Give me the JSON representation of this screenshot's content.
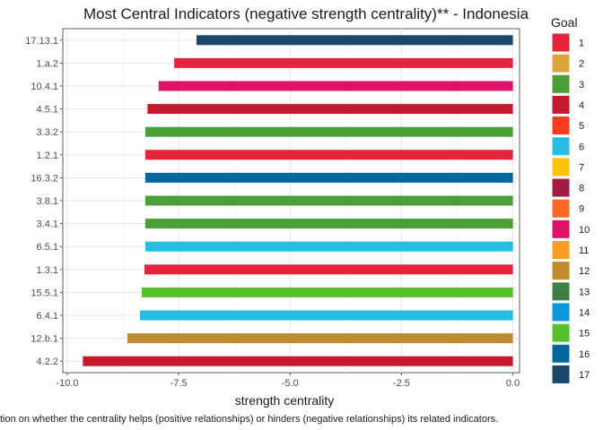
{
  "chart_data": {
    "type": "bar",
    "orientation": "horizontal",
    "title": "Most Central Indicators (negative strength centrality)** - Indonesia",
    "xlabel": "strength centrality",
    "ylabel": "",
    "xlim": [
      -10.1,
      0.15
    ],
    "xticks": [
      -10.0,
      -7.5,
      -5.0,
      -2.5,
      0.0
    ],
    "xtick_labels": [
      "-10.0",
      "-7.5",
      "-5.0",
      "-2.5",
      "0.0"
    ],
    "grid": true,
    "legend_position": "right",
    "categories": [
      "17.13.1",
      "1.a.2",
      "10.4.1",
      "4.5.1",
      "3.3.2",
      "1.2.1",
      "16.3.2",
      "3.8.1",
      "3.4.1",
      "6.5.1",
      "1.3.1",
      "15.5.1",
      "6.4.1",
      "12.b.1",
      "4.2.2"
    ],
    "values": [
      -7.1,
      -7.6,
      -7.95,
      -8.2,
      -8.25,
      -8.25,
      -8.25,
      -8.25,
      -8.25,
      -8.25,
      -8.27,
      -8.33,
      -8.37,
      -8.65,
      -9.65
    ],
    "goals": [
      "17",
      "1",
      "10",
      "4",
      "3",
      "1",
      "16",
      "3",
      "3",
      "6",
      "1",
      "15",
      "6",
      "12",
      "4"
    ],
    "legend": {
      "title": "Goal",
      "items": [
        {
          "label": "1",
          "color": "#E5243B"
        },
        {
          "label": "2",
          "color": "#DDA63A"
        },
        {
          "label": "3",
          "color": "#4C9F38"
        },
        {
          "label": "4",
          "color": "#C5192D"
        },
        {
          "label": "5",
          "color": "#FF3A21"
        },
        {
          "label": "6",
          "color": "#26BDE2"
        },
        {
          "label": "7",
          "color": "#FCC30B"
        },
        {
          "label": "8",
          "color": "#A21942"
        },
        {
          "label": "9",
          "color": "#FD6925"
        },
        {
          "label": "10",
          "color": "#DD1367"
        },
        {
          "label": "11",
          "color": "#FD9D24"
        },
        {
          "label": "12",
          "color": "#BF8B2E"
        },
        {
          "label": "13",
          "color": "#3F7E44"
        },
        {
          "label": "14",
          "color": "#0A97D9"
        },
        {
          "label": "15",
          "color": "#56C02B"
        },
        {
          "label": "16",
          "color": "#00689D"
        },
        {
          "label": "17",
          "color": "#19486A"
        }
      ]
    },
    "caption": "tion on whether the centrality helps (positive relationships) or hinders (negative relationships) its related indicators."
  }
}
